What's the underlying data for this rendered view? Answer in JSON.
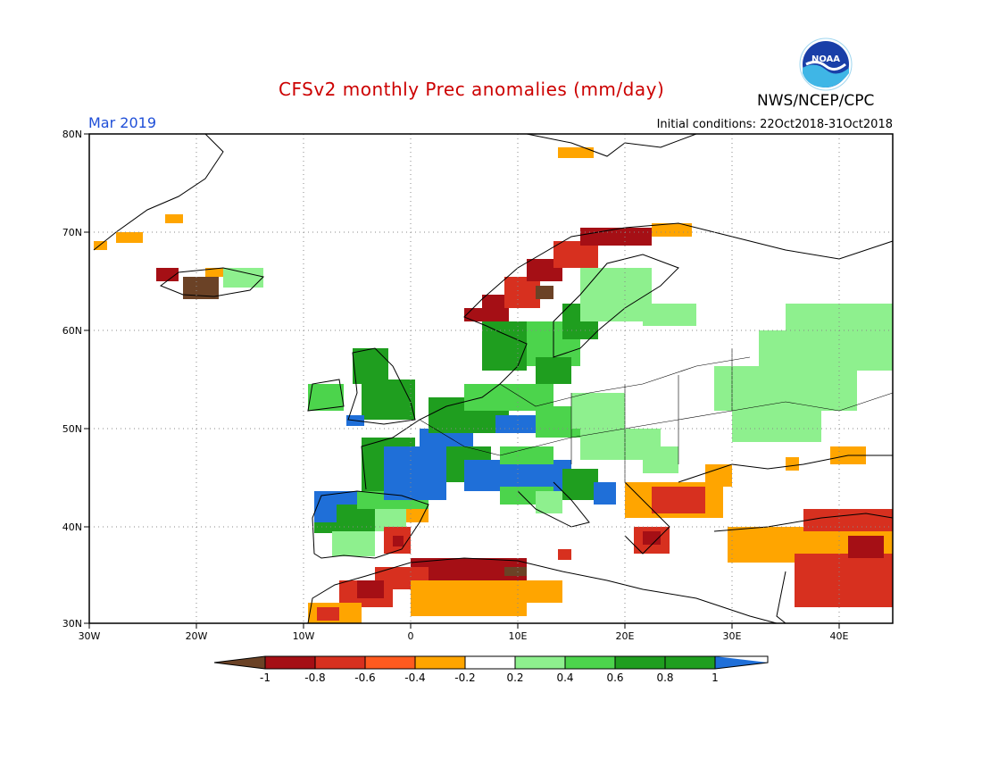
{
  "title": "CFSv2 monthly Prec anomalies (mm/day)",
  "agency": "NWS/NCEP/CPC",
  "logo_text": "NOAA",
  "month_label": "Mar 2019",
  "initial_conditions": "Initial conditions: 22Oct2018-31Oct2018",
  "latitude_labels": [
    "80N",
    "70N",
    "60N",
    "50N",
    "40N",
    "30N"
  ],
  "longitude_labels": [
    "30W",
    "20W",
    "10W",
    "0",
    "10E",
    "20E",
    "30E",
    "40E"
  ],
  "colorbar": {
    "labels": [
      "-1",
      "-0.8",
      "-0.6",
      "-0.4",
      "-0.2",
      "0.2",
      "0.4",
      "0.6",
      "0.8",
      "1"
    ],
    "colors": [
      "#6b4226",
      "#a50f15",
      "#d7301f",
      "#ff5a1f",
      "#ffa500",
      "#ffffff",
      "#8ef08e",
      "#4cd44c",
      "#1f9e1f",
      "#1f6fd8"
    ]
  },
  "colors": {
    "dry_extreme": "#6b4226",
    "dry_strong": "#a50f15",
    "dry_moderate": "#e8421f",
    "dry_light": "#ffa500",
    "wet_light": "#8ef08e",
    "wet_moderate": "#4cd44c",
    "wet_strong": "#1f9e1f",
    "wet_extreme": "#1f6fd8"
  }
}
